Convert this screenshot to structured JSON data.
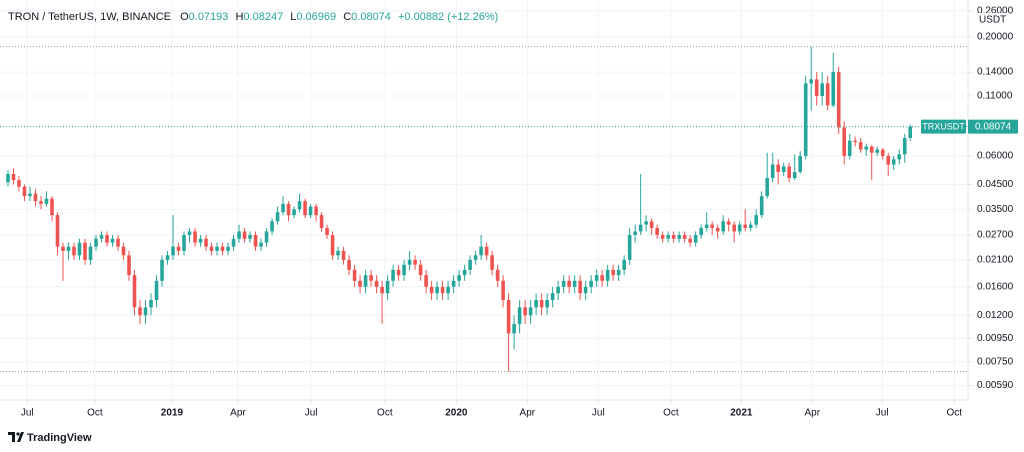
{
  "title": "TRON / TetherUS, 1W, BINANCE",
  "legend_letters": [
    "O",
    "H",
    "L",
    "C"
  ],
  "change_label": "+0.00882 (+12.26%)",
  "symbol": "TRXUSDT",
  "currency": "USDT",
  "watermark": "TradingView",
  "chart_data": {
    "type": "candlestick",
    "log_scale": true,
    "grid": true,
    "up_color": "#26a69a",
    "down_color": "#ef5350",
    "open": [
      0.046,
      0.05,
      0.047,
      0.044,
      0.04,
      0.041,
      0.038,
      0.037,
      0.039,
      0.033,
      0.024,
      0.023,
      0.024,
      0.022,
      0.025,
      0.021,
      0.024,
      0.026,
      0.027,
      0.025,
      0.026,
      0.024,
      0.022,
      0.018,
      0.013,
      0.012,
      0.013,
      0.014,
      0.017,
      0.021,
      0.022,
      0.024,
      0.023,
      0.027,
      0.028,
      0.025,
      0.026,
      0.024,
      0.023,
      0.024,
      0.023,
      0.024,
      0.026,
      0.028,
      0.026,
      0.027,
      0.024,
      0.025,
      0.028,
      0.031,
      0.034,
      0.037,
      0.033,
      0.035,
      0.038,
      0.033,
      0.036,
      0.033,
      0.029,
      0.027,
      0.022,
      0.023,
      0.021,
      0.019,
      0.017,
      0.016,
      0.018,
      0.017,
      0.016,
      0.015,
      0.017,
      0.019,
      0.018,
      0.02,
      0.021,
      0.02,
      0.018,
      0.016,
      0.015,
      0.016,
      0.015,
      0.016,
      0.017,
      0.018,
      0.019,
      0.021,
      0.022,
      0.024,
      0.022,
      0.019,
      0.017,
      0.014,
      0.01,
      0.011,
      0.013,
      0.012,
      0.013,
      0.014,
      0.013,
      0.014,
      0.015,
      0.016,
      0.017,
      0.016,
      0.017,
      0.015,
      0.016,
      0.017,
      0.018,
      0.017,
      0.019,
      0.018,
      0.019,
      0.021,
      0.027,
      0.028,
      0.03,
      0.031,
      0.029,
      0.027,
      0.026,
      0.027,
      0.026,
      0.027,
      0.026,
      0.025,
      0.027,
      0.029,
      0.03,
      0.029,
      0.028,
      0.031,
      0.03,
      0.028,
      0.03,
      0.029,
      0.03,
      0.033,
      0.04,
      0.048,
      0.055,
      0.051,
      0.054,
      0.048,
      0.051,
      0.06,
      0.125,
      0.13,
      0.11,
      0.125,
      0.1,
      0.14,
      0.08,
      0.06,
      0.07,
      0.069,
      0.064,
      0.066,
      0.062,
      0.064,
      0.06,
      0.055,
      0.058,
      0.061,
      0.07193
    ],
    "high": [
      0.052,
      0.053,
      0.049,
      0.045,
      0.044,
      0.043,
      0.04,
      0.042,
      0.04,
      0.034,
      0.025,
      0.025,
      0.025,
      0.026,
      0.026,
      0.025,
      0.027,
      0.028,
      0.028,
      0.027,
      0.027,
      0.025,
      0.023,
      0.019,
      0.014,
      0.014,
      0.015,
      0.018,
      0.022,
      0.023,
      0.033,
      0.025,
      0.028,
      0.029,
      0.029,
      0.027,
      0.027,
      0.025,
      0.025,
      0.025,
      0.025,
      0.027,
      0.03,
      0.029,
      0.028,
      0.028,
      0.026,
      0.029,
      0.032,
      0.036,
      0.04,
      0.038,
      0.036,
      0.041,
      0.039,
      0.037,
      0.037,
      0.034,
      0.03,
      0.028,
      0.024,
      0.024,
      0.022,
      0.02,
      0.018,
      0.019,
      0.019,
      0.018,
      0.017,
      0.018,
      0.02,
      0.02,
      0.021,
      0.023,
      0.022,
      0.021,
      0.019,
      0.017,
      0.017,
      0.017,
      0.017,
      0.018,
      0.019,
      0.02,
      0.022,
      0.023,
      0.027,
      0.025,
      0.023,
      0.02,
      0.018,
      0.015,
      0.012,
      0.014,
      0.014,
      0.014,
      0.015,
      0.015,
      0.015,
      0.016,
      0.017,
      0.018,
      0.018,
      0.018,
      0.018,
      0.017,
      0.018,
      0.019,
      0.019,
      0.02,
      0.02,
      0.02,
      0.022,
      0.029,
      0.03,
      0.05,
      0.033,
      0.032,
      0.03,
      0.028,
      0.028,
      0.028,
      0.028,
      0.028,
      0.027,
      0.028,
      0.03,
      0.034,
      0.031,
      0.03,
      0.033,
      0.032,
      0.031,
      0.031,
      0.035,
      0.031,
      0.035,
      0.042,
      0.062,
      0.062,
      0.058,
      0.056,
      0.056,
      0.061,
      0.063,
      0.135,
      0.181,
      0.14,
      0.14,
      0.135,
      0.17,
      0.148,
      0.085,
      0.075,
      0.073,
      0.072,
      0.068,
      0.067,
      0.066,
      0.065,
      0.062,
      0.06,
      0.064,
      0.075,
      0.08247
    ],
    "low": [
      0.044,
      0.045,
      0.042,
      0.038,
      0.038,
      0.036,
      0.035,
      0.036,
      0.031,
      0.022,
      0.017,
      0.021,
      0.021,
      0.021,
      0.02,
      0.02,
      0.023,
      0.025,
      0.024,
      0.024,
      0.023,
      0.021,
      0.017,
      0.012,
      0.011,
      0.011,
      0.012,
      0.013,
      0.016,
      0.02,
      0.021,
      0.022,
      0.022,
      0.025,
      0.024,
      0.024,
      0.023,
      0.022,
      0.022,
      0.022,
      0.022,
      0.023,
      0.025,
      0.025,
      0.025,
      0.023,
      0.023,
      0.024,
      0.027,
      0.03,
      0.033,
      0.031,
      0.032,
      0.034,
      0.032,
      0.032,
      0.031,
      0.028,
      0.026,
      0.021,
      0.021,
      0.02,
      0.018,
      0.016,
      0.015,
      0.015,
      0.016,
      0.015,
      0.011,
      0.014,
      0.016,
      0.017,
      0.017,
      0.019,
      0.019,
      0.017,
      0.015,
      0.014,
      0.014,
      0.014,
      0.014,
      0.015,
      0.016,
      0.017,
      0.018,
      0.02,
      0.021,
      0.021,
      0.018,
      0.016,
      0.013,
      0.0068,
      0.0085,
      0.01,
      0.011,
      0.011,
      0.012,
      0.012,
      0.012,
      0.013,
      0.014,
      0.015,
      0.015,
      0.015,
      0.014,
      0.014,
      0.015,
      0.016,
      0.016,
      0.016,
      0.017,
      0.017,
      0.018,
      0.02,
      0.025,
      0.027,
      0.028,
      0.027,
      0.026,
      0.025,
      0.025,
      0.025,
      0.025,
      0.025,
      0.024,
      0.024,
      0.026,
      0.028,
      0.027,
      0.026,
      0.027,
      0.028,
      0.025,
      0.027,
      0.028,
      0.028,
      0.029,
      0.032,
      0.039,
      0.046,
      0.045,
      0.049,
      0.046,
      0.047,
      0.05,
      0.058,
      0.095,
      0.1,
      0.1,
      0.095,
      0.098,
      0.075,
      0.055,
      0.058,
      0.066,
      0.062,
      0.06,
      0.047,
      0.06,
      0.058,
      0.049,
      0.052,
      0.055,
      0.056,
      0.06969
    ],
    "close": [
      0.05,
      0.047,
      0.044,
      0.04,
      0.041,
      0.038,
      0.037,
      0.039,
      0.033,
      0.024,
      0.023,
      0.024,
      0.022,
      0.025,
      0.021,
      0.024,
      0.026,
      0.027,
      0.025,
      0.026,
      0.024,
      0.022,
      0.018,
      0.013,
      0.012,
      0.013,
      0.014,
      0.017,
      0.021,
      0.022,
      0.024,
      0.023,
      0.027,
      0.028,
      0.025,
      0.026,
      0.024,
      0.023,
      0.024,
      0.023,
      0.024,
      0.026,
      0.028,
      0.026,
      0.027,
      0.024,
      0.025,
      0.028,
      0.031,
      0.034,
      0.037,
      0.033,
      0.035,
      0.038,
      0.033,
      0.036,
      0.033,
      0.029,
      0.027,
      0.022,
      0.023,
      0.021,
      0.019,
      0.017,
      0.016,
      0.018,
      0.017,
      0.016,
      0.015,
      0.017,
      0.019,
      0.018,
      0.02,
      0.021,
      0.02,
      0.018,
      0.016,
      0.015,
      0.016,
      0.015,
      0.016,
      0.017,
      0.018,
      0.019,
      0.021,
      0.022,
      0.024,
      0.022,
      0.019,
      0.017,
      0.014,
      0.01,
      0.011,
      0.013,
      0.012,
      0.013,
      0.014,
      0.013,
      0.014,
      0.015,
      0.016,
      0.017,
      0.016,
      0.017,
      0.015,
      0.016,
      0.017,
      0.018,
      0.017,
      0.019,
      0.018,
      0.019,
      0.021,
      0.027,
      0.028,
      0.03,
      0.031,
      0.029,
      0.027,
      0.026,
      0.027,
      0.026,
      0.027,
      0.026,
      0.025,
      0.027,
      0.029,
      0.03,
      0.029,
      0.028,
      0.031,
      0.03,
      0.028,
      0.03,
      0.029,
      0.03,
      0.033,
      0.04,
      0.048,
      0.055,
      0.051,
      0.054,
      0.048,
      0.051,
      0.06,
      0.125,
      0.13,
      0.11,
      0.125,
      0.1,
      0.14,
      0.08,
      0.06,
      0.07,
      0.069,
      0.064,
      0.066,
      0.062,
      0.064,
      0.06,
      0.055,
      0.058,
      0.061,
      0.07193,
      0.08074
    ],
    "xlim": [
      -1.45,
      174.5
    ],
    "xticks": [
      {
        "value": 3.5,
        "label": "Jul"
      },
      {
        "value": 15.8,
        "label": "Oct"
      },
      {
        "value": 29.8,
        "label": "2019"
      },
      {
        "value": 41.8,
        "label": "Apr"
      },
      {
        "value": 55.1,
        "label": "Jul"
      },
      {
        "value": 68.5,
        "label": "Oct"
      },
      {
        "value": 81.5,
        "label": "2020"
      },
      {
        "value": 94.4,
        "label": "Apr"
      },
      {
        "value": 107.3,
        "label": "Jul"
      },
      {
        "value": 120.5,
        "label": "Oct"
      },
      {
        "value": 133.3,
        "label": "2021"
      },
      {
        "value": 146.2,
        "label": "Apr"
      },
      {
        "value": 158.9,
        "label": "Jul"
      },
      {
        "value": 172,
        "label": "Oct"
      }
    ],
    "ylim": [
      0.0051,
      0.29
    ],
    "yticks": [
      {
        "value": 0.26,
        "label": "0.26000"
      },
      {
        "value": 0.2,
        "label": "0.20000"
      },
      {
        "value": 0.14,
        "label": "0.14000"
      },
      {
        "value": 0.11,
        "label": "0.11000"
      },
      {
        "value": 0.06,
        "label": "0.06000"
      },
      {
        "value": 0.045,
        "label": "0.04500"
      },
      {
        "value": 0.035,
        "label": "0.03500"
      },
      {
        "value": 0.027,
        "label": "0.02700"
      },
      {
        "value": 0.021,
        "label": "0.02100"
      },
      {
        "value": 0.016,
        "label": "0.01600"
      },
      {
        "value": 0.012,
        "label": "0.01200"
      },
      {
        "value": 0.0095,
        "label": "0.00950"
      },
      {
        "value": 0.0075,
        "label": "0.00750"
      },
      {
        "value": 0.0059,
        "label": "0.00590"
      }
    ]
  }
}
